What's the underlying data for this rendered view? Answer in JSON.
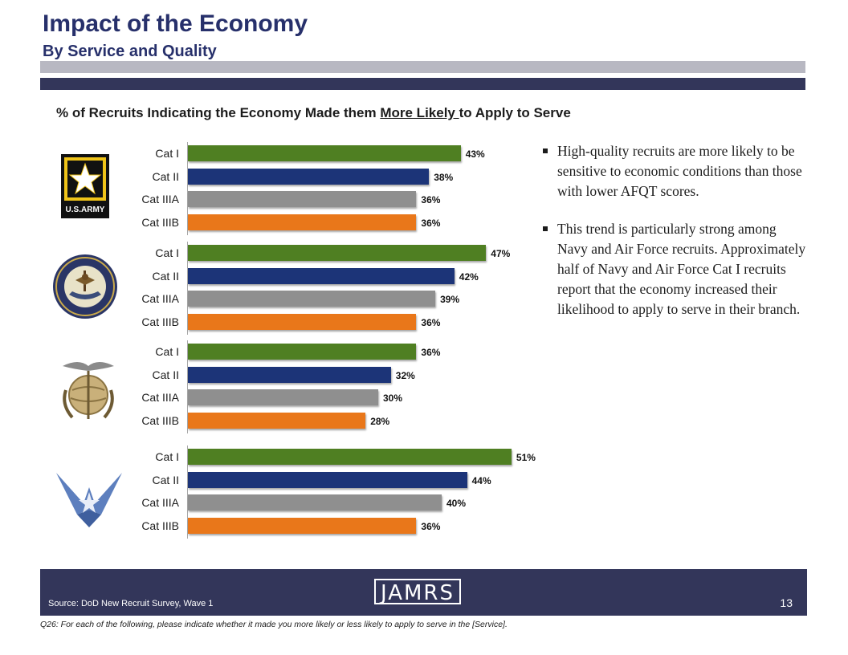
{
  "header": {
    "title": "Impact of the Economy",
    "subtitle": "By Service and Quality"
  },
  "chart_title": {
    "prefix": "% of Recruits Indicating the Economy Made them ",
    "underlined": "More Likely ",
    "suffix": "to Apply to Serve"
  },
  "chart_data": {
    "type": "bar",
    "orientation": "horizontal",
    "title": "% of Recruits Indicating the Economy Made them More Likely to Apply to Serve",
    "categories": [
      "Cat I",
      "Cat II",
      "Cat IIIA",
      "Cat IIIB"
    ],
    "xlim": [
      0,
      100
    ],
    "grid": false,
    "legend": "none",
    "colors": [
      "#4f7f22",
      "#1c3478",
      "#8f8f8f",
      "#e9771a"
    ],
    "panels": [
      {
        "logo": "army-logo",
        "values": [
          43,
          38,
          36,
          36
        ],
        "labels": [
          "43%",
          "38%",
          "36%",
          "36%"
        ]
      },
      {
        "logo": "navy-seal-logo",
        "values": [
          47,
          42,
          39,
          36
        ],
        "labels": [
          "47%",
          "42%",
          "39%",
          "36%"
        ]
      },
      {
        "logo": "marine-corps-emblem",
        "values": [
          36,
          32,
          30,
          28
        ],
        "labels": [
          "36%",
          "32%",
          "30%",
          "28%"
        ]
      },
      {
        "logo": "air-force-logo",
        "values": [
          51,
          44,
          40,
          36
        ],
        "labels": [
          "51%",
          "44%",
          "40%",
          "36%"
        ]
      }
    ]
  },
  "logos": {
    "army_text": "U.S.ARMY"
  },
  "bullets": [
    "High-quality recruits are more likely to be sensitive to economic conditions than those with lower AFQT scores.",
    "This trend is particularly strong among Navy and Air Force recruits.  Approximately half of Navy and Air Force Cat I recruits report that the economy increased their likelihood to apply to serve in their branch."
  ],
  "footer": {
    "source": "Source:  DoD New Recruit Survey, Wave 1",
    "logo_text": "JAMRS",
    "page_number": "13",
    "note": "Q26:  For each of the following, please indicate whether it made you more likely or less likely to apply to serve in the [Service]."
  }
}
